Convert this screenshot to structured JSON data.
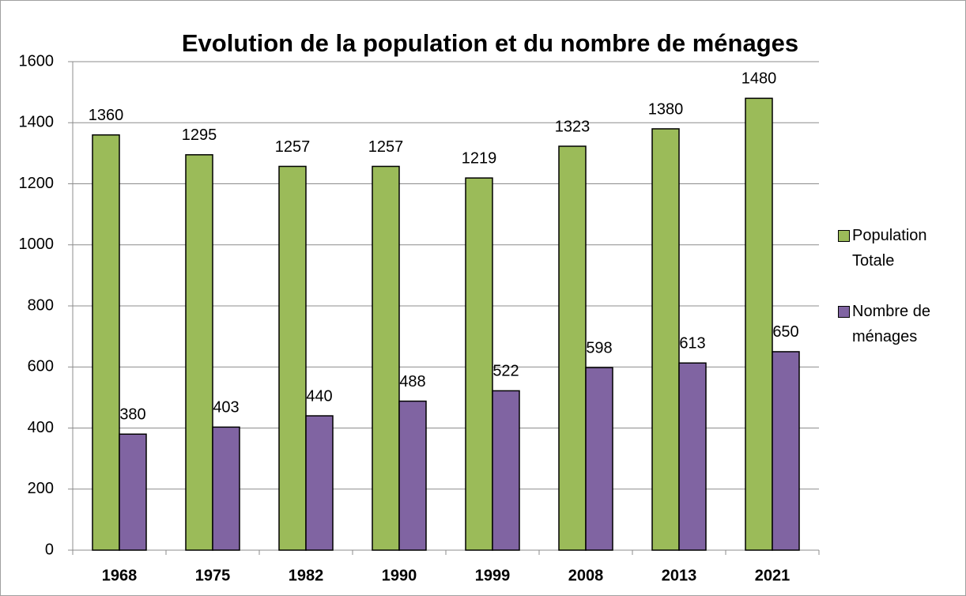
{
  "chart_data": {
    "type": "bar",
    "title": "Evolution de la population et du nombre de ménages",
    "categories": [
      "1968",
      "1975",
      "1982",
      "1990",
      "1999",
      "2008",
      "2013",
      "2021"
    ],
    "series": [
      {
        "name": "Population Totale",
        "color": "#9bbb59",
        "values": [
          1360,
          1295,
          1257,
          1257,
          1219,
          1323,
          1380,
          1480
        ]
      },
      {
        "name": "Nombre de ménages",
        "color": "#8064a2",
        "values": [
          380,
          403,
          440,
          488,
          522,
          598,
          613,
          650
        ]
      }
    ],
    "ylim": [
      0,
      1600
    ],
    "yticks": [
      0,
      200,
      400,
      600,
      800,
      1000,
      1200,
      1400,
      1600
    ],
    "grid": true,
    "legend": "right"
  }
}
